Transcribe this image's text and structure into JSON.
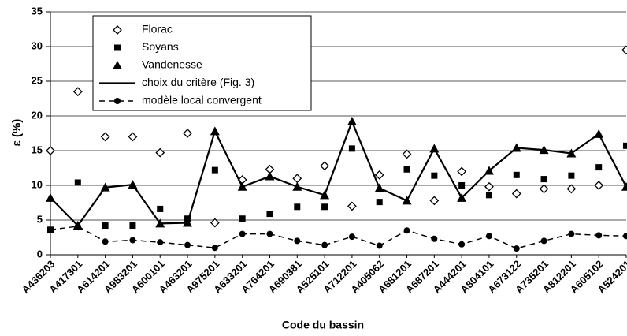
{
  "chart_data": {
    "type": "line",
    "y_label": "ε (%)",
    "x_label": "Code du bassin",
    "categories": [
      "A436203",
      "A417301",
      "A614201",
      "A983201",
      "A600101",
      "A463201",
      "A975201",
      "A633201",
      "A764201",
      "A690381",
      "A525101",
      "A712201",
      "A405062",
      "A681201",
      "A687201",
      "A444201",
      "A804101",
      "A673122",
      "A735201",
      "A812201",
      "A605102",
      "A524201"
    ],
    "series": [
      {
        "name": "Florac",
        "color": "#000000",
        "marker": "diamond-open",
        "line": "none",
        "values": [
          15,
          23.5,
          17,
          17,
          14.7,
          17.5,
          4.6,
          10.8,
          12.3,
          11,
          12.8,
          7,
          11.5,
          14.5,
          7.8,
          12,
          9.8,
          8.8,
          9.5,
          9.5,
          10,
          29.5
        ]
      },
      {
        "name": "Soyans",
        "color": "#000000",
        "marker": "square",
        "line": "none",
        "values": [
          3.6,
          10.4,
          4.2,
          4.2,
          6.6,
          5.2,
          12.2,
          5.2,
          5.9,
          6.9,
          6.9,
          15.3,
          7.6,
          12.3,
          11.4,
          10,
          8.6,
          11.5,
          10.9,
          11.4,
          12.6,
          15.7
        ]
      },
      {
        "name": "Vandenesse",
        "color": "#000000",
        "marker": "triangle",
        "line": "none",
        "values": [
          8.2,
          4.2,
          9.7,
          10.1,
          4.5,
          4.6,
          17.8,
          9.8,
          11.3,
          9.8,
          8.6,
          19.2,
          9.6,
          7.8,
          15.3,
          8.2,
          12.1,
          15.4,
          15.1,
          14.6,
          17.4,
          9.8
        ]
      },
      {
        "name": "choix du critère (Fig. 3)",
        "color": "#000000",
        "marker": "none",
        "line": "solid",
        "values": [
          8.2,
          4.2,
          9.7,
          10.1,
          4.5,
          4.6,
          17.8,
          9.8,
          11.3,
          9.8,
          8.6,
          19.2,
          9.6,
          7.8,
          15.3,
          8.2,
          12.1,
          15.4,
          15.1,
          14.6,
          17.4,
          9.8
        ]
      },
      {
        "name": "modèle local convergent",
        "color": "#000000",
        "marker": "circle",
        "line": "dashed",
        "values": [
          3.6,
          4.1,
          1.9,
          2.1,
          1.8,
          1.4,
          1.0,
          3.0,
          3.0,
          2.0,
          1.4,
          2.6,
          1.3,
          3.5,
          2.3,
          1.5,
          2.7,
          0.9,
          2.0,
          3.0,
          2.8,
          2.7
        ]
      }
    ],
    "ylim": [
      0,
      35
    ],
    "yticks": [
      0,
      5,
      10,
      15,
      20,
      25,
      30,
      35
    ],
    "grid": true,
    "legend": "top-left"
  }
}
